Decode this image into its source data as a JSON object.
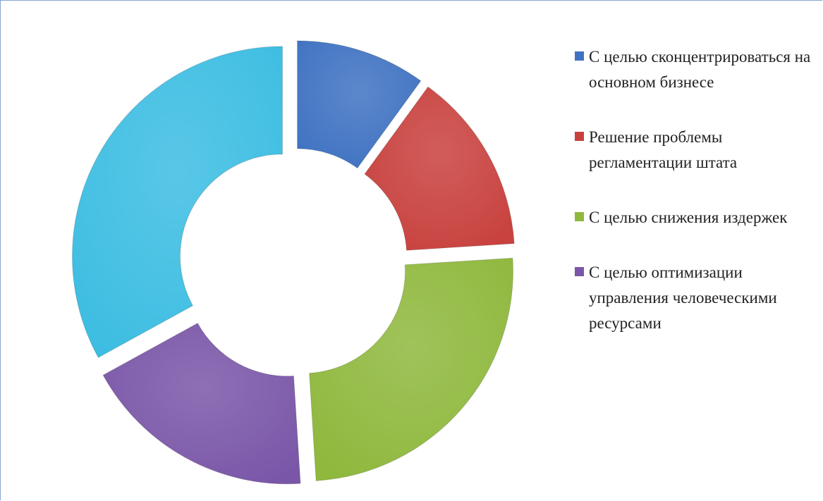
{
  "chart_data": {
    "type": "donut",
    "categories": [
      "С целью сконцентрироваться на основном бизнесе",
      "Решение проблемы регламентации штата",
      "С целью снижения издержек",
      "С целью оптимизации управления человеческими ресурсами",
      null
    ],
    "values": [
      10,
      14,
      25,
      18,
      33
    ],
    "colors": [
      "#3f72c2",
      "#c8413e",
      "#8fb83d",
      "#7a56a8",
      "#3cbde2"
    ],
    "legend": "right"
  }
}
